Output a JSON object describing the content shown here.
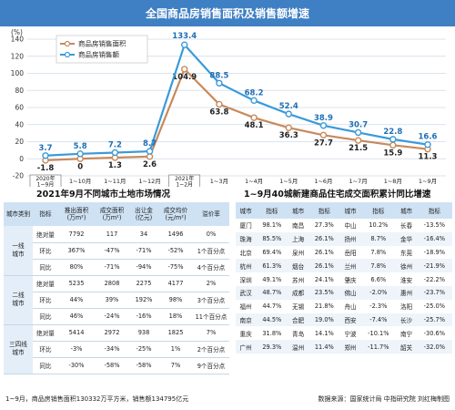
{
  "page_title": "全国商品房销售面积及销售额增速",
  "chart_data": {
    "type": "line",
    "ylabel": "(%)",
    "ylim": [
      -20,
      140
    ],
    "yticks": [
      -20,
      0,
      20,
      40,
      60,
      80,
      100,
      120,
      140
    ],
    "categories": [
      "2020年1~9月",
      "1~10月",
      "1~11月",
      "1~12月",
      "2021年1~2月",
      "1~3月",
      "1~4月",
      "1~5月",
      "1~6月",
      "1~7月",
      "1~8月",
      "1~9月"
    ],
    "series": [
      {
        "name": "商品房销售面积",
        "color": "#c8895b",
        "values": [
          -1.8,
          0,
          1.3,
          2.6,
          104.9,
          63.8,
          48.1,
          36.3,
          27.7,
          21.5,
          15.9,
          11.3
        ],
        "labels": [
          "-1.8",
          "0",
          "1.3",
          "2.6",
          "104.9",
          "63.8",
          "48.1",
          "36.3",
          "27.7",
          "21.5",
          "15.9",
          "11.3"
        ]
      },
      {
        "name": "商品房销售额",
        "color": "#3a9ad9",
        "values": [
          3.7,
          5.8,
          7.2,
          8.7,
          133.4,
          88.5,
          68.2,
          52.4,
          38.9,
          30.7,
          22.8,
          16.6
        ],
        "labels": [
          "3.7",
          "5.8",
          "7.2",
          "8.7",
          "133.4",
          "88.5",
          "68.2",
          "52.4",
          "38.9",
          "30.7",
          "22.8",
          "16.6"
        ]
      }
    ],
    "legend_position": "top-left",
    "grid": true
  },
  "table1": {
    "title": "2021年9月不同城市土地市场情况",
    "headers": [
      "城市类别",
      "指标",
      "推出面积(万m²)",
      "成交面积(万m²)",
      "出让金(亿元)",
      "成交均价(元/m²)",
      "溢价率"
    ],
    "groups": [
      {
        "city": "一线城市",
        "rows": [
          [
            "绝对量",
            "7792",
            "117",
            "34",
            "1496",
            "0%"
          ],
          [
            "环比",
            "367%",
            "-47%",
            "-71%",
            "-52%",
            "1个百分点"
          ],
          [
            "同比",
            "80%",
            "-71%",
            "-94%",
            "-75%",
            "4个百分点"
          ]
        ]
      },
      {
        "city": "二线城市",
        "rows": [
          [
            "绝对量",
            "5235",
            "2808",
            "2275",
            "4177",
            "2%"
          ],
          [
            "环比",
            "44%",
            "39%",
            "192%",
            "98%",
            "3个百分点"
          ],
          [
            "同比",
            "46%",
            "-24%",
            "-16%",
            "18%",
            "11个百分点"
          ]
        ]
      },
      {
        "city": "三四线城市",
        "rows": [
          [
            "绝对量",
            "5414",
            "2972",
            "938",
            "1825",
            "7%"
          ],
          [
            "环比",
            "-3%",
            "-34%",
            "-25%",
            "1%",
            "2个百分点"
          ],
          [
            "同比",
            "-30%",
            "-58%",
            "-58%",
            "7%",
            "9个百分点"
          ]
        ]
      }
    ]
  },
  "table2": {
    "title": "1~9月40城新建商品住宅成交面积累计同比增速",
    "header_city": "城市",
    "header_value": "指标",
    "rows": [
      [
        [
          "厦门",
          "98.1%"
        ],
        [
          "南昌",
          "27.3%"
        ],
        [
          "中山",
          "10.2%"
        ],
        [
          "长春",
          "-13.5%"
        ]
      ],
      [
        [
          "珠海",
          "85.5%"
        ],
        [
          "上海",
          "26.1%"
        ],
        [
          "扬州",
          "8.7%"
        ],
        [
          "金华",
          "-16.4%"
        ]
      ],
      [
        [
          "北京",
          "69.4%"
        ],
        [
          "泉州",
          "26.1%"
        ],
        [
          "岳阳",
          "7.8%"
        ],
        [
          "东莞",
          "-18.9%"
        ]
      ],
      [
        [
          "杭州",
          "61.3%"
        ],
        [
          "烟台",
          "26.1%"
        ],
        [
          "兰州",
          "7.8%"
        ],
        [
          "徐州",
          "-21.9%"
        ]
      ],
      [
        [
          "深圳",
          "49.1%"
        ],
        [
          "苏州",
          "24.1%"
        ],
        [
          "肇庆",
          "6.6%"
        ],
        [
          "淮安",
          "-22.2%"
        ]
      ],
      [
        [
          "武汉",
          "48.7%"
        ],
        [
          "成都",
          "23.5%"
        ],
        [
          "佛山",
          "-2.0%"
        ],
        [
          "惠州",
          "-23.7%"
        ]
      ],
      [
        [
          "福州",
          "44.7%"
        ],
        [
          "无锡",
          "21.8%"
        ],
        [
          "舟山",
          "-2.3%"
        ],
        [
          "洛阳",
          "-25.0%"
        ]
      ],
      [
        [
          "南京",
          "44.5%"
        ],
        [
          "合肥",
          "19.0%"
        ],
        [
          "西安",
          "-7.4%"
        ],
        [
          "长沙",
          "-25.7%"
        ]
      ],
      [
        [
          "重庆",
          "31.8%"
        ],
        [
          "青岛",
          "14.1%"
        ],
        [
          "宁波",
          "-10.1%"
        ],
        [
          "南宁",
          "-30.6%"
        ]
      ],
      [
        [
          "广州",
          "29.3%"
        ],
        [
          "温州",
          "11.4%"
        ],
        [
          "郑州",
          "-11.7%"
        ],
        [
          "韶关",
          "-32.0%"
        ]
      ]
    ]
  },
  "footer": {
    "note": "1~9月，商品房销售面积130332万平方米，销售额134795亿元",
    "source": "数据来源：国家统计局  中指研究院  刘红梅制图"
  }
}
